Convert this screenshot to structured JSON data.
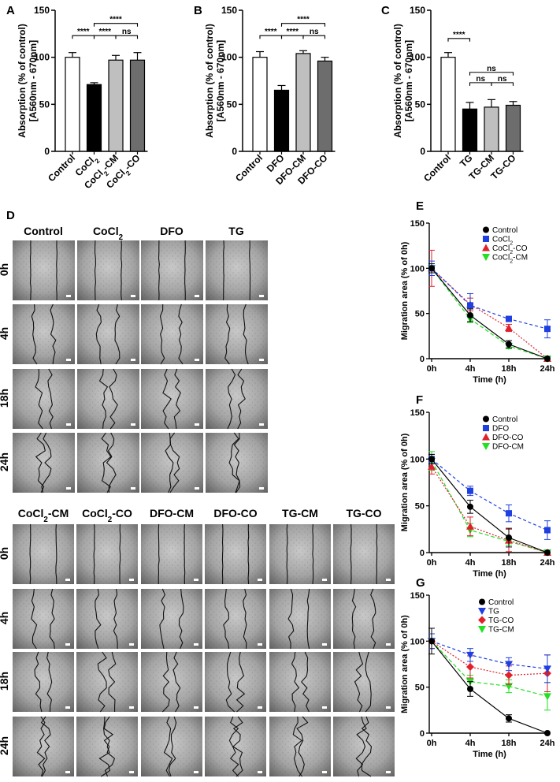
{
  "panel_letters": {
    "A": "A",
    "B": "B",
    "C": "C",
    "D": "D",
    "E": "E",
    "F": "F",
    "G": "G"
  },
  "bar_ylabel_1": "Absorption (% of control)",
  "bar_ylabel_2": "[A560nm - 670nm]",
  "line_ylabel": "Migration area (% of 0h)",
  "line_xlabel": "Time (h)",
  "sig": {
    "s4": "****",
    "ns": "ns"
  },
  "wound": {
    "top_headers": [
      "Control",
      "CoCl2",
      "DFO",
      "TG"
    ],
    "bottom_headers": [
      "CoCl2-CM",
      "CoCl2-CO",
      "DFO-CM",
      "DFO-CO",
      "TG-CM",
      "TG-CO"
    ],
    "time_labels": [
      "0h",
      "4h",
      "18h",
      "24h"
    ]
  },
  "chart_data": [
    {
      "panel": "A",
      "type": "bar",
      "categories": [
        "Control",
        "CoCl2",
        "CoCl2-CM",
        "CoCl2-CO"
      ],
      "values": [
        100,
        71,
        97,
        97
      ],
      "errors": [
        5,
        2,
        5,
        8
      ],
      "fills": [
        "#ffffff",
        "#000000",
        "#bfbfbf",
        "#6d6d6d"
      ],
      "ylim": [
        0,
        150
      ],
      "yticks": [
        0,
        50,
        100,
        150
      ]
    },
    {
      "panel": "B",
      "type": "bar",
      "categories": [
        "Control",
        "DFO",
        "DFO-CM",
        "DFO-CO"
      ],
      "values": [
        100,
        65,
        104,
        96
      ],
      "errors": [
        6,
        5,
        3,
        4
      ],
      "fills": [
        "#ffffff",
        "#000000",
        "#bfbfbf",
        "#6d6d6d"
      ],
      "ylim": [
        0,
        150
      ],
      "yticks": [
        0,
        50,
        100,
        150
      ]
    },
    {
      "panel": "C",
      "type": "bar",
      "categories": [
        "Control",
        "TG",
        "TG-CM",
        "TG-CO"
      ],
      "values": [
        100,
        45,
        47,
        49
      ],
      "errors": [
        5,
        7,
        8,
        4
      ],
      "fills": [
        "#ffffff",
        "#000000",
        "#bfbfbf",
        "#6d6d6d"
      ],
      "ylim": [
        0,
        150
      ],
      "yticks": [
        0,
        50,
        100,
        150
      ]
    },
    {
      "panel": "E",
      "type": "line",
      "x": [
        "0h",
        "4h",
        "18h",
        "24h"
      ],
      "ylim": [
        0,
        150
      ],
      "yticks": [
        0,
        50,
        100,
        150
      ],
      "series": [
        {
          "name": "Control",
          "values": [
            100,
            48,
            16,
            0
          ],
          "errors": [
            5,
            7,
            4,
            0
          ],
          "color": "#000000",
          "marker": "circle",
          "dash": ""
        },
        {
          "name": "CoCl2",
          "values": [
            100,
            59,
            44,
            33
          ],
          "errors": [
            8,
            13,
            2,
            10
          ],
          "color": "#1f3fe0",
          "marker": "square",
          "dash": "4,3"
        },
        {
          "name": "CoCl2-CO",
          "values": [
            100,
            60,
            34,
            0
          ],
          "errors": [
            20,
            7,
            4,
            0
          ],
          "color": "#e0202a",
          "marker": "triangle-up",
          "dash": "2,2"
        },
        {
          "name": "CoCl2-CM",
          "values": [
            100,
            44,
            14,
            0
          ],
          "errors": [
            3,
            4,
            3,
            0
          ],
          "color": "#22e022",
          "marker": "triangle-down",
          "dash": "5,3"
        }
      ]
    },
    {
      "panel": "F",
      "type": "line",
      "x": [
        "0h",
        "4h",
        "18h",
        "24h"
      ],
      "ylim": [
        0,
        150
      ],
      "yticks": [
        0,
        50,
        100,
        150
      ],
      "series": [
        {
          "name": "Control",
          "values": [
            100,
            49,
            16,
            0
          ],
          "errors": [
            5,
            7,
            10,
            0
          ],
          "color": "#000000",
          "marker": "circle",
          "dash": ""
        },
        {
          "name": "DFO",
          "values": [
            100,
            66,
            42,
            24
          ],
          "errors": [
            5,
            5,
            9,
            10
          ],
          "color": "#1f3fe0",
          "marker": "square",
          "dash": "4,3"
        },
        {
          "name": "DFO-CO",
          "values": [
            92,
            28,
            13,
            0
          ],
          "errors": [
            8,
            10,
            12,
            0
          ],
          "color": "#e0202a",
          "marker": "triangle-up",
          "dash": "2,2"
        },
        {
          "name": "DFO-CM",
          "values": [
            98,
            24,
            12,
            0
          ],
          "errors": [
            10,
            7,
            4,
            0
          ],
          "color": "#22e022",
          "marker": "triangle-down",
          "dash": "5,3"
        }
      ]
    },
    {
      "panel": "G",
      "type": "line",
      "x": [
        "0h",
        "4h",
        "18h",
        "24h"
      ],
      "ylim": [
        0,
        150
      ],
      "yticks": [
        0,
        50,
        100,
        150
      ],
      "series": [
        {
          "name": "Control",
          "values": [
            100,
            48,
            16,
            0
          ],
          "errors": [
            14,
            8,
            4,
            0
          ],
          "color": "#000000",
          "marker": "circle",
          "dash": ""
        },
        {
          "name": "TG",
          "values": [
            100,
            85,
            75,
            70
          ],
          "errors": [
            8,
            7,
            7,
            15
          ],
          "color": "#1f3fe0",
          "marker": "triangle-down",
          "dash": "4,3"
        },
        {
          "name": "TG-CO",
          "values": [
            100,
            72,
            63,
            65
          ],
          "errors": [
            8,
            12,
            10,
            20
          ],
          "color": "#e0202a",
          "marker": "diamond",
          "dash": "2,2"
        },
        {
          "name": "TG-CM",
          "values": [
            100,
            56,
            51,
            40
          ],
          "errors": [
            8,
            7,
            7,
            15
          ],
          "color": "#22e022",
          "marker": "triangle-down",
          "dash": "5,3"
        }
      ]
    }
  ]
}
